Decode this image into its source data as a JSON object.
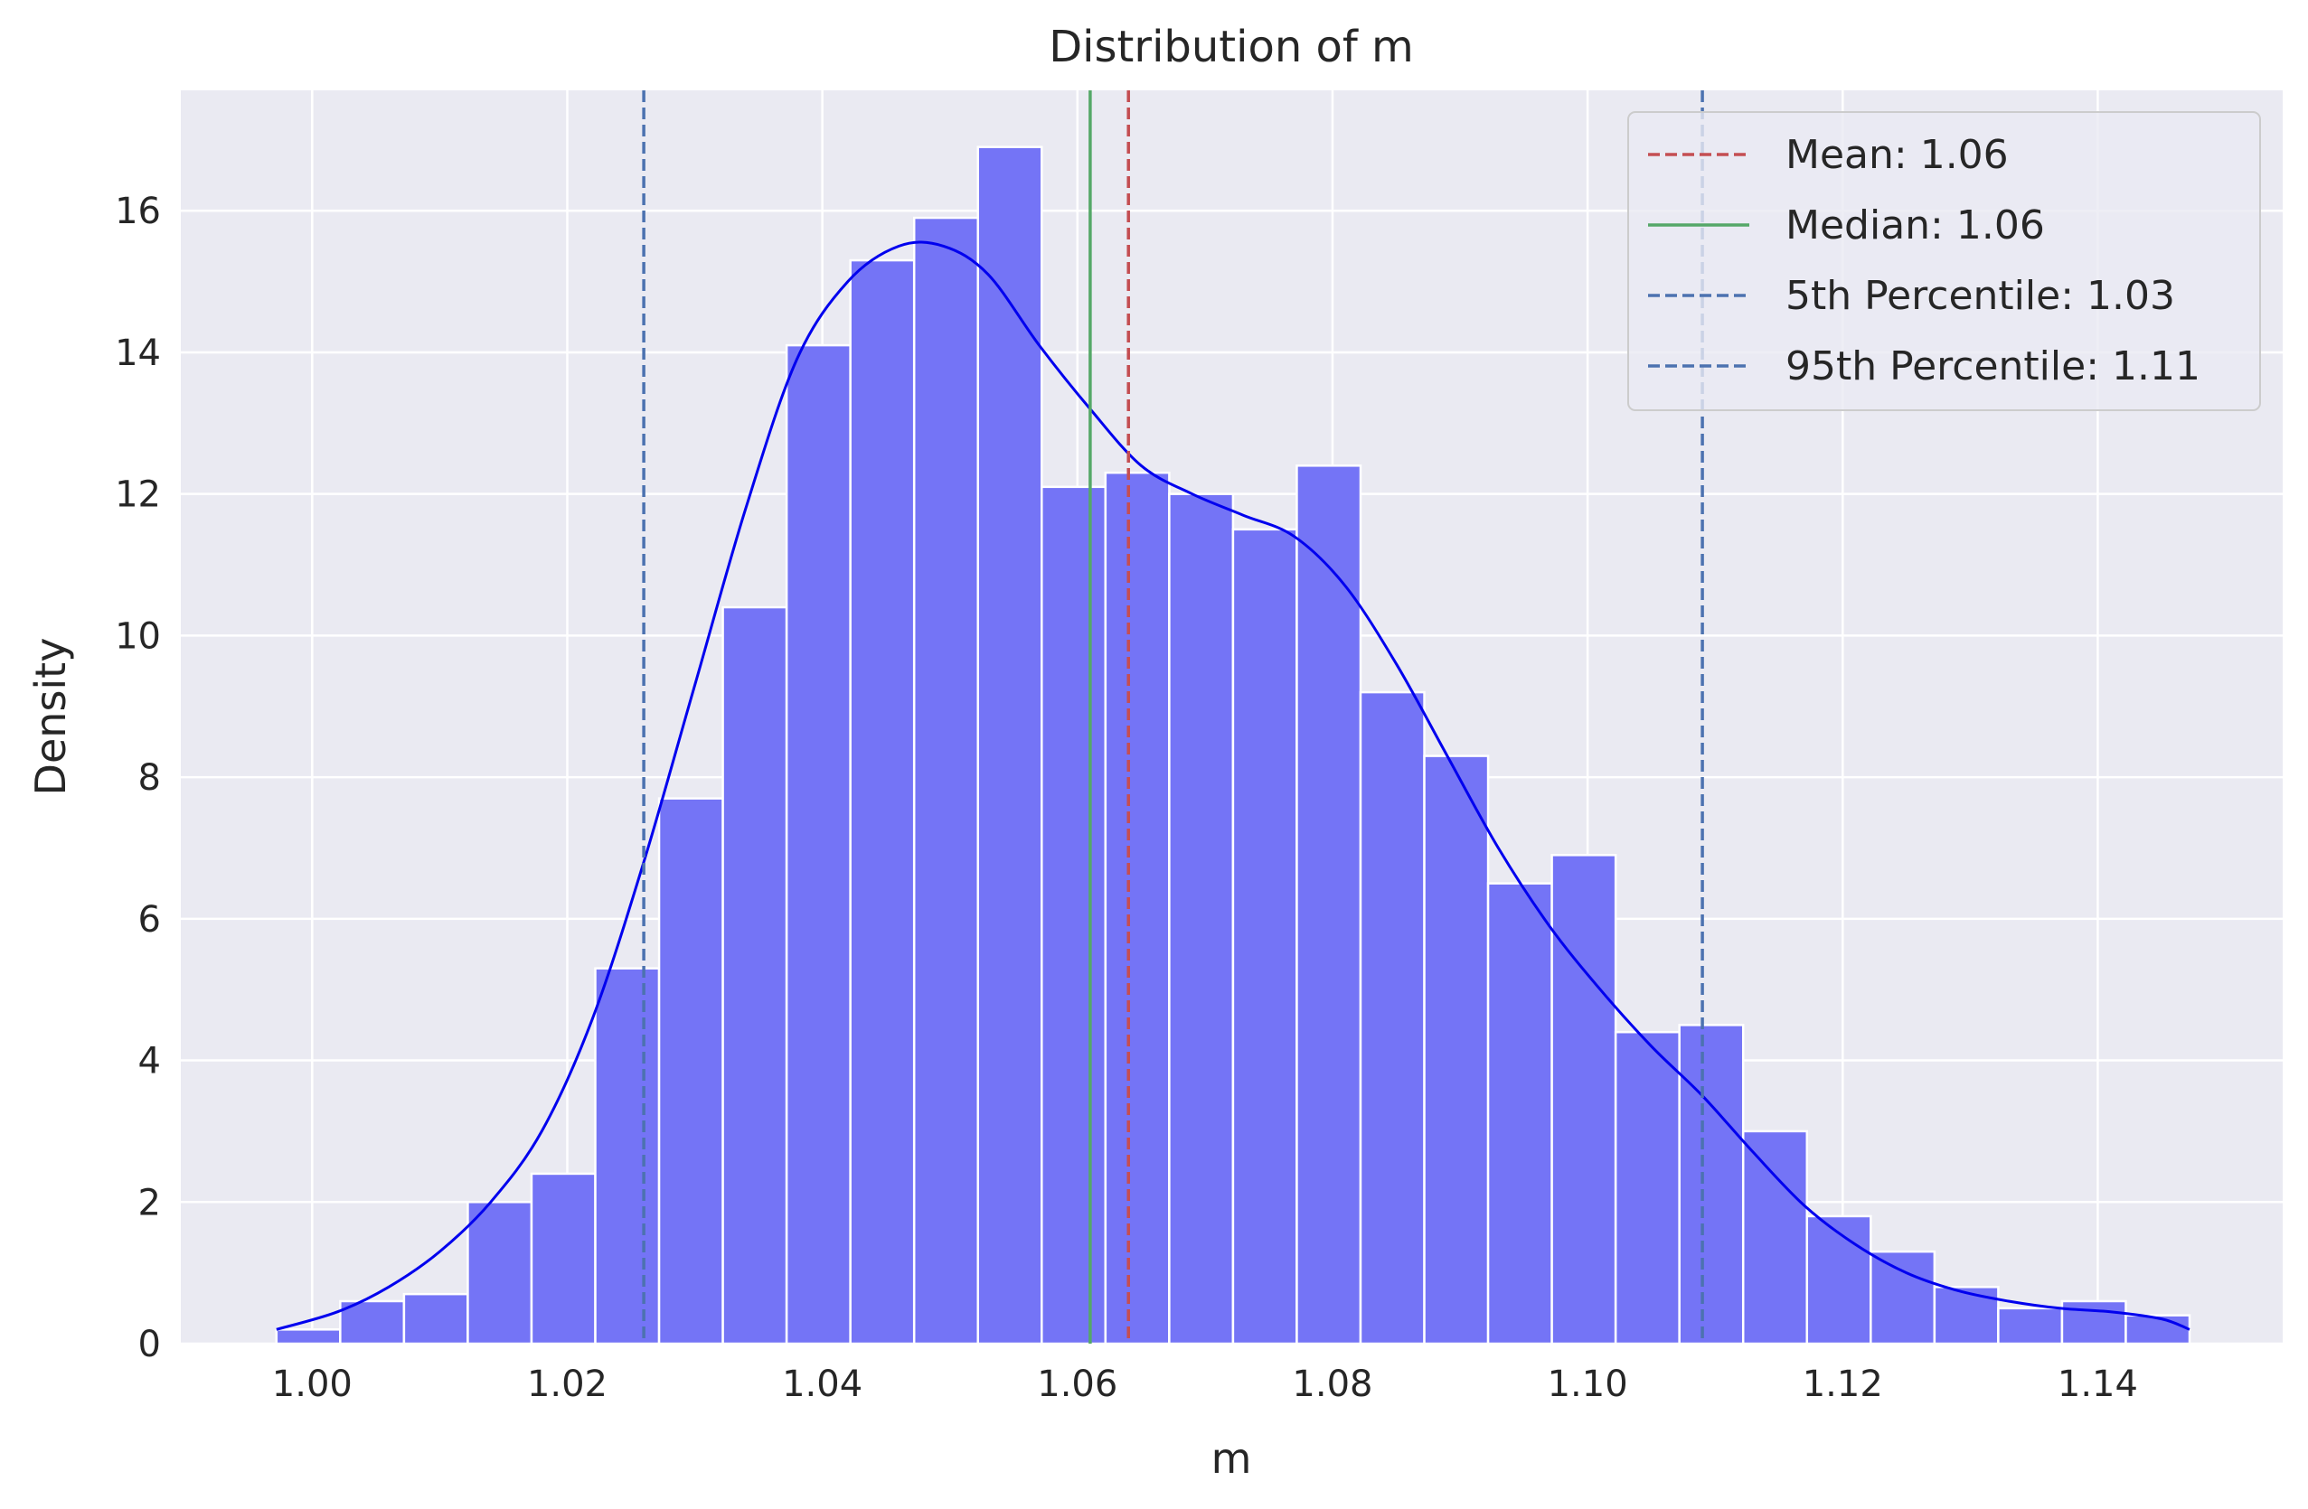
{
  "chart_data": {
    "type": "bar",
    "title": "Distribution of m",
    "xlabel": "m",
    "ylabel": "Density",
    "xlim": [
      0.9897,
      1.1545
    ],
    "ylim": [
      0,
      17.7
    ],
    "xticks": [
      1.0,
      1.02,
      1.04,
      1.06,
      1.08,
      1.1,
      1.12,
      1.14
    ],
    "xtick_labels": [
      "1.00",
      "1.02",
      "1.04",
      "1.06",
      "1.08",
      "1.10",
      "1.12",
      "1.14"
    ],
    "yticks": [
      0,
      2,
      4,
      6,
      8,
      10,
      12,
      14,
      16
    ],
    "ytick_labels": [
      "0",
      "2",
      "4",
      "6",
      "8",
      "10",
      "12",
      "14",
      "16"
    ],
    "grid": true,
    "legend_position": "top-right",
    "histogram": {
      "bin_start": 0.9972,
      "bin_width": 0.005,
      "values": [
        0.2,
        0.6,
        0.7,
        2.0,
        2.4,
        5.3,
        7.7,
        10.4,
        14.1,
        15.3,
        15.9,
        16.9,
        12.1,
        12.3,
        12.0,
        11.5,
        12.4,
        9.2,
        8.3,
        6.5,
        6.9,
        4.4,
        4.5,
        3.0,
        1.8,
        1.3,
        0.8,
        0.5,
        0.6,
        0.4
      ],
      "color": "#7474f6",
      "edge_color": "#ffffff"
    },
    "kde": {
      "color": "#0000ee",
      "x": [
        0.9972,
        1.002,
        1.006,
        1.01,
        1.014,
        1.018,
        1.022,
        1.026,
        1.03,
        1.034,
        1.038,
        1.042,
        1.046,
        1.0495,
        1.053,
        1.057,
        1.061,
        1.065,
        1.069,
        1.073,
        1.077,
        1.081,
        1.085,
        1.089,
        1.093,
        1.097,
        1.101,
        1.105,
        1.109,
        1.113,
        1.117,
        1.121,
        1.125,
        1.129,
        1.133,
        1.137,
        1.141,
        1.145,
        1.1472
      ],
      "y": [
        0.2,
        0.45,
        0.8,
        1.3,
        2.0,
        3.0,
        4.6,
        6.8,
        9.3,
        11.8,
        13.9,
        15.0,
        15.5,
        15.5,
        15.1,
        14.1,
        13.2,
        12.4,
        12.0,
        11.7,
        11.4,
        10.7,
        9.6,
        8.3,
        7.0,
        5.9,
        5.0,
        4.2,
        3.5,
        2.7,
        1.95,
        1.4,
        1.0,
        0.75,
        0.6,
        0.5,
        0.45,
        0.35,
        0.2
      ]
    },
    "reference_lines": [
      {
        "name": "Mean: 1.06",
        "x": 1.064,
        "color": "#c44e52",
        "style": "dashed"
      },
      {
        "name": "Median: 1.06",
        "x": 1.061,
        "color": "#55a868",
        "style": "solid"
      },
      {
        "name": "5th Percentile: 1.03",
        "x": 1.026,
        "color": "#4c72b0",
        "style": "dashed"
      },
      {
        "name": "95th Percentile: 1.11",
        "x": 1.109,
        "color": "#4c72b0",
        "style": "dashed"
      }
    ],
    "background_color": "#eaeaf2",
    "grid_color": "#ffffff"
  }
}
